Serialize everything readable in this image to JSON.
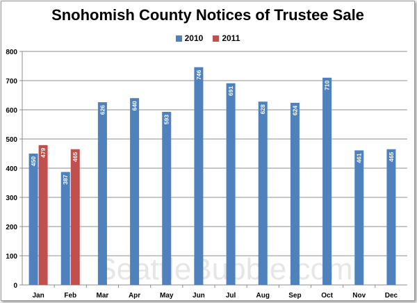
{
  "chart_data": {
    "type": "bar",
    "title": "Snohomish County Notices of Trustee Sale",
    "categories": [
      "Jan",
      "Feb",
      "Mar",
      "Apr",
      "May",
      "Jun",
      "Jul",
      "Aug",
      "Sep",
      "Oct",
      "Nov",
      "Dec"
    ],
    "series": [
      {
        "name": "2010",
        "color": "#4f81bd",
        "values": [
          450,
          387,
          626,
          640,
          593,
          746,
          691,
          628,
          624,
          710,
          461,
          465
        ]
      },
      {
        "name": "2011",
        "color": "#c0504d",
        "values": [
          479,
          465,
          null,
          null,
          null,
          null,
          null,
          null,
          null,
          null,
          null,
          null
        ]
      }
    ],
    "ylim": [
      0,
      800
    ],
    "yticks": [
      0,
      100,
      200,
      300,
      400,
      500,
      600,
      700,
      800
    ],
    "grid": true,
    "legend_position": "top",
    "value_labels": "inside-rotated",
    "watermark": "SeattleBubble.com"
  }
}
